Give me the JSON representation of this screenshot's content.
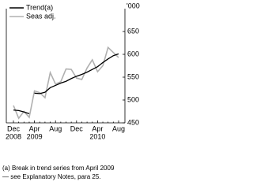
{
  "chart_data": {
    "type": "line",
    "y_unit": "'000",
    "categories": [
      "Dec",
      null,
      null,
      null,
      "Apr",
      null,
      null,
      null,
      "Aug",
      null,
      null,
      null,
      "Dec",
      null,
      null,
      null,
      "Apr",
      null,
      null,
      null,
      "Aug"
    ],
    "year_labels": [
      "2008",
      null,
      null,
      null,
      "2009",
      null,
      null,
      null,
      null,
      null,
      null,
      null,
      null,
      null,
      null,
      null,
      "2010",
      null,
      null,
      null,
      null
    ],
    "series": [
      {
        "name": "Trend(a)",
        "color": "#000000",
        "values": [
          478,
          477,
          474,
          470,
          515,
          514,
          517,
          527,
          532,
          537,
          541,
          547,
          552,
          556,
          561,
          567,
          573,
          582,
          590,
          597,
          601
        ]
      },
      {
        "name": "Seas adj.",
        "color": "#b0b0b0",
        "values": [
          488,
          460,
          475,
          462,
          520,
          516,
          505,
          560,
          535,
          540,
          568,
          567,
          548,
          545,
          570,
          588,
          562,
          575,
          615,
          604,
          593
        ]
      }
    ],
    "ylim": [
      450,
      700
    ],
    "yticks": [
      450,
      500,
      550,
      600,
      650
    ],
    "footnote": [
      "(a) Break in trend series from April 2009",
      "— see Explanatory Notes, para 25."
    ]
  }
}
